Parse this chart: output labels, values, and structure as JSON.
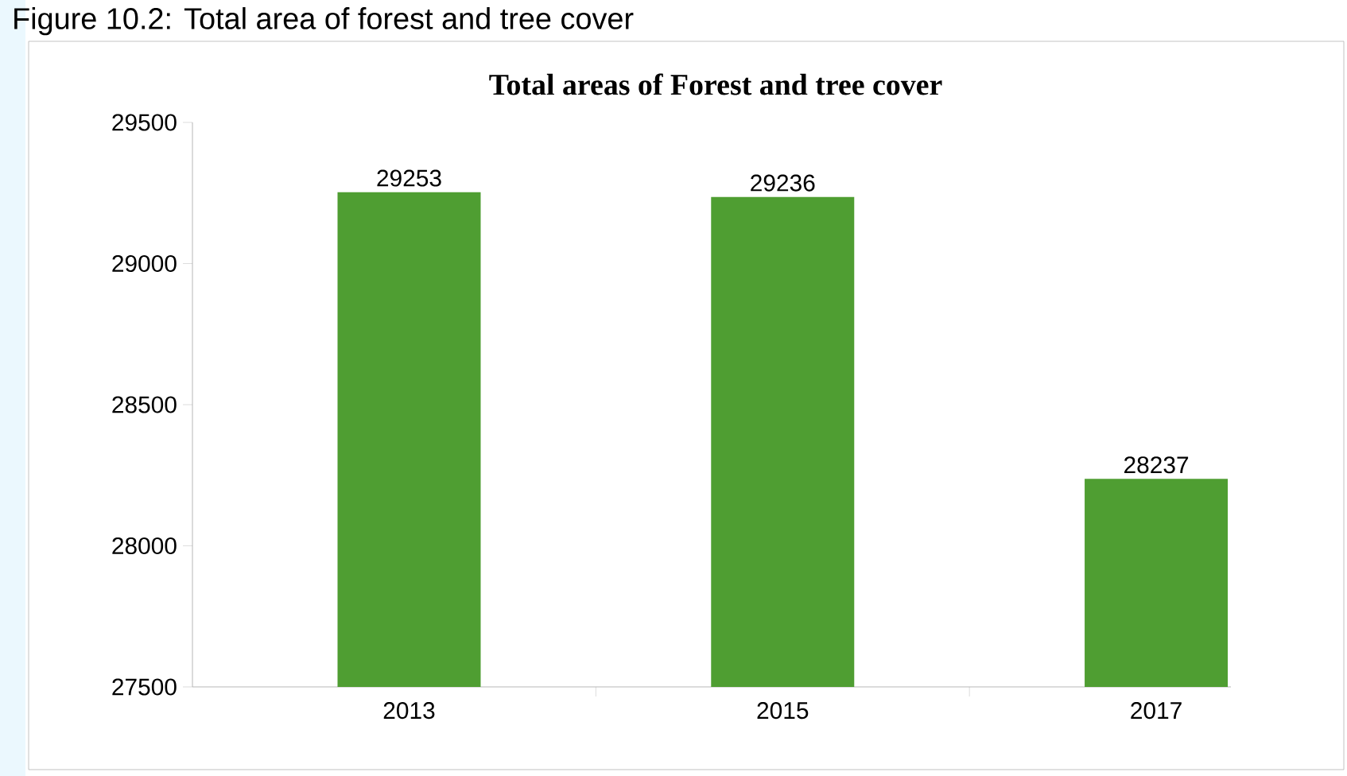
{
  "chart_data": {
    "type": "bar",
    "title": "Figure 10.2: Total area of forest and tree cover",
    "subtitle": "Total areas of Forest and tree cover",
    "categories": [
      "2013",
      "2015",
      "2017"
    ],
    "values": [
      29253,
      29236,
      28237
    ],
    "color": "#4f9e32",
    "ylim": [
      27500,
      29500
    ],
    "yticks": [
      27500,
      28000,
      28500,
      29000,
      29500
    ],
    "grid": false,
    "data_labels": true
  }
}
